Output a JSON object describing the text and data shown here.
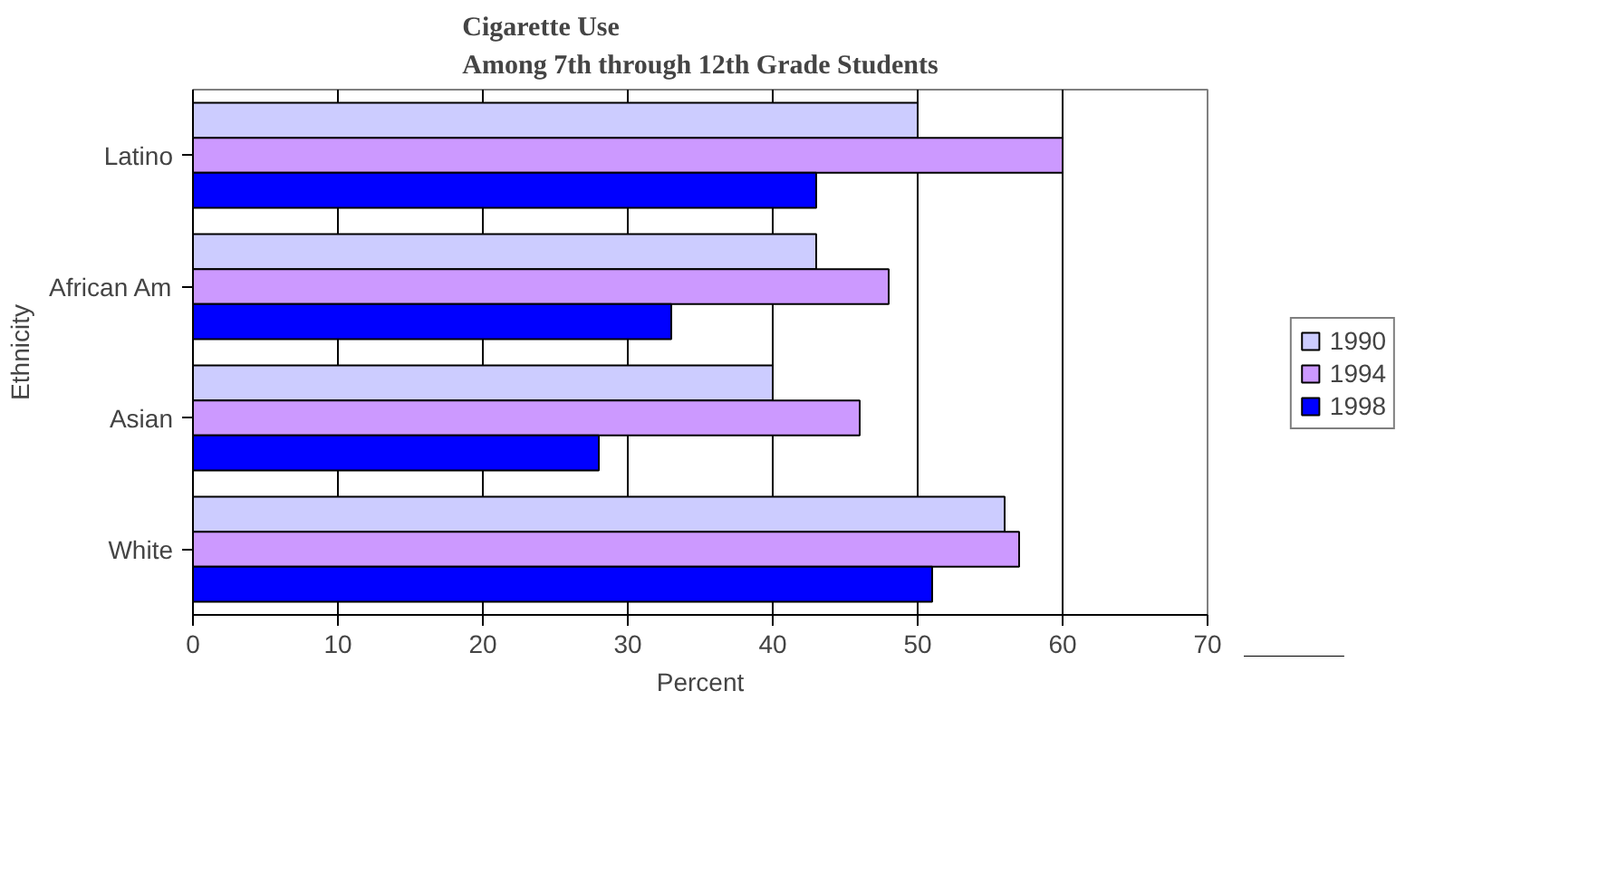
{
  "chart_data": {
    "type": "bar",
    "orientation": "horizontal",
    "title": "Cigarette Use\nAmong 7th through 12th Grade Students",
    "xlabel": "Percent",
    "ylabel": "Ethnicity",
    "categories": [
      "Latino",
      "African Am",
      "Asian",
      "White"
    ],
    "series": [
      {
        "name": "1990",
        "color": "#ccccff",
        "values": [
          50,
          43,
          40,
          56
        ]
      },
      {
        "name": "1994",
        "color": "#cc99ff",
        "values": [
          60,
          48,
          46,
          57
        ]
      },
      {
        "name": "1998",
        "color": "#0000ff",
        "values": [
          43,
          33,
          28,
          51
        ]
      }
    ],
    "xlim": [
      0,
      70
    ],
    "xticks": [
      0,
      10,
      20,
      30,
      40,
      50,
      60,
      70
    ],
    "grid": "x",
    "legend": "right"
  }
}
